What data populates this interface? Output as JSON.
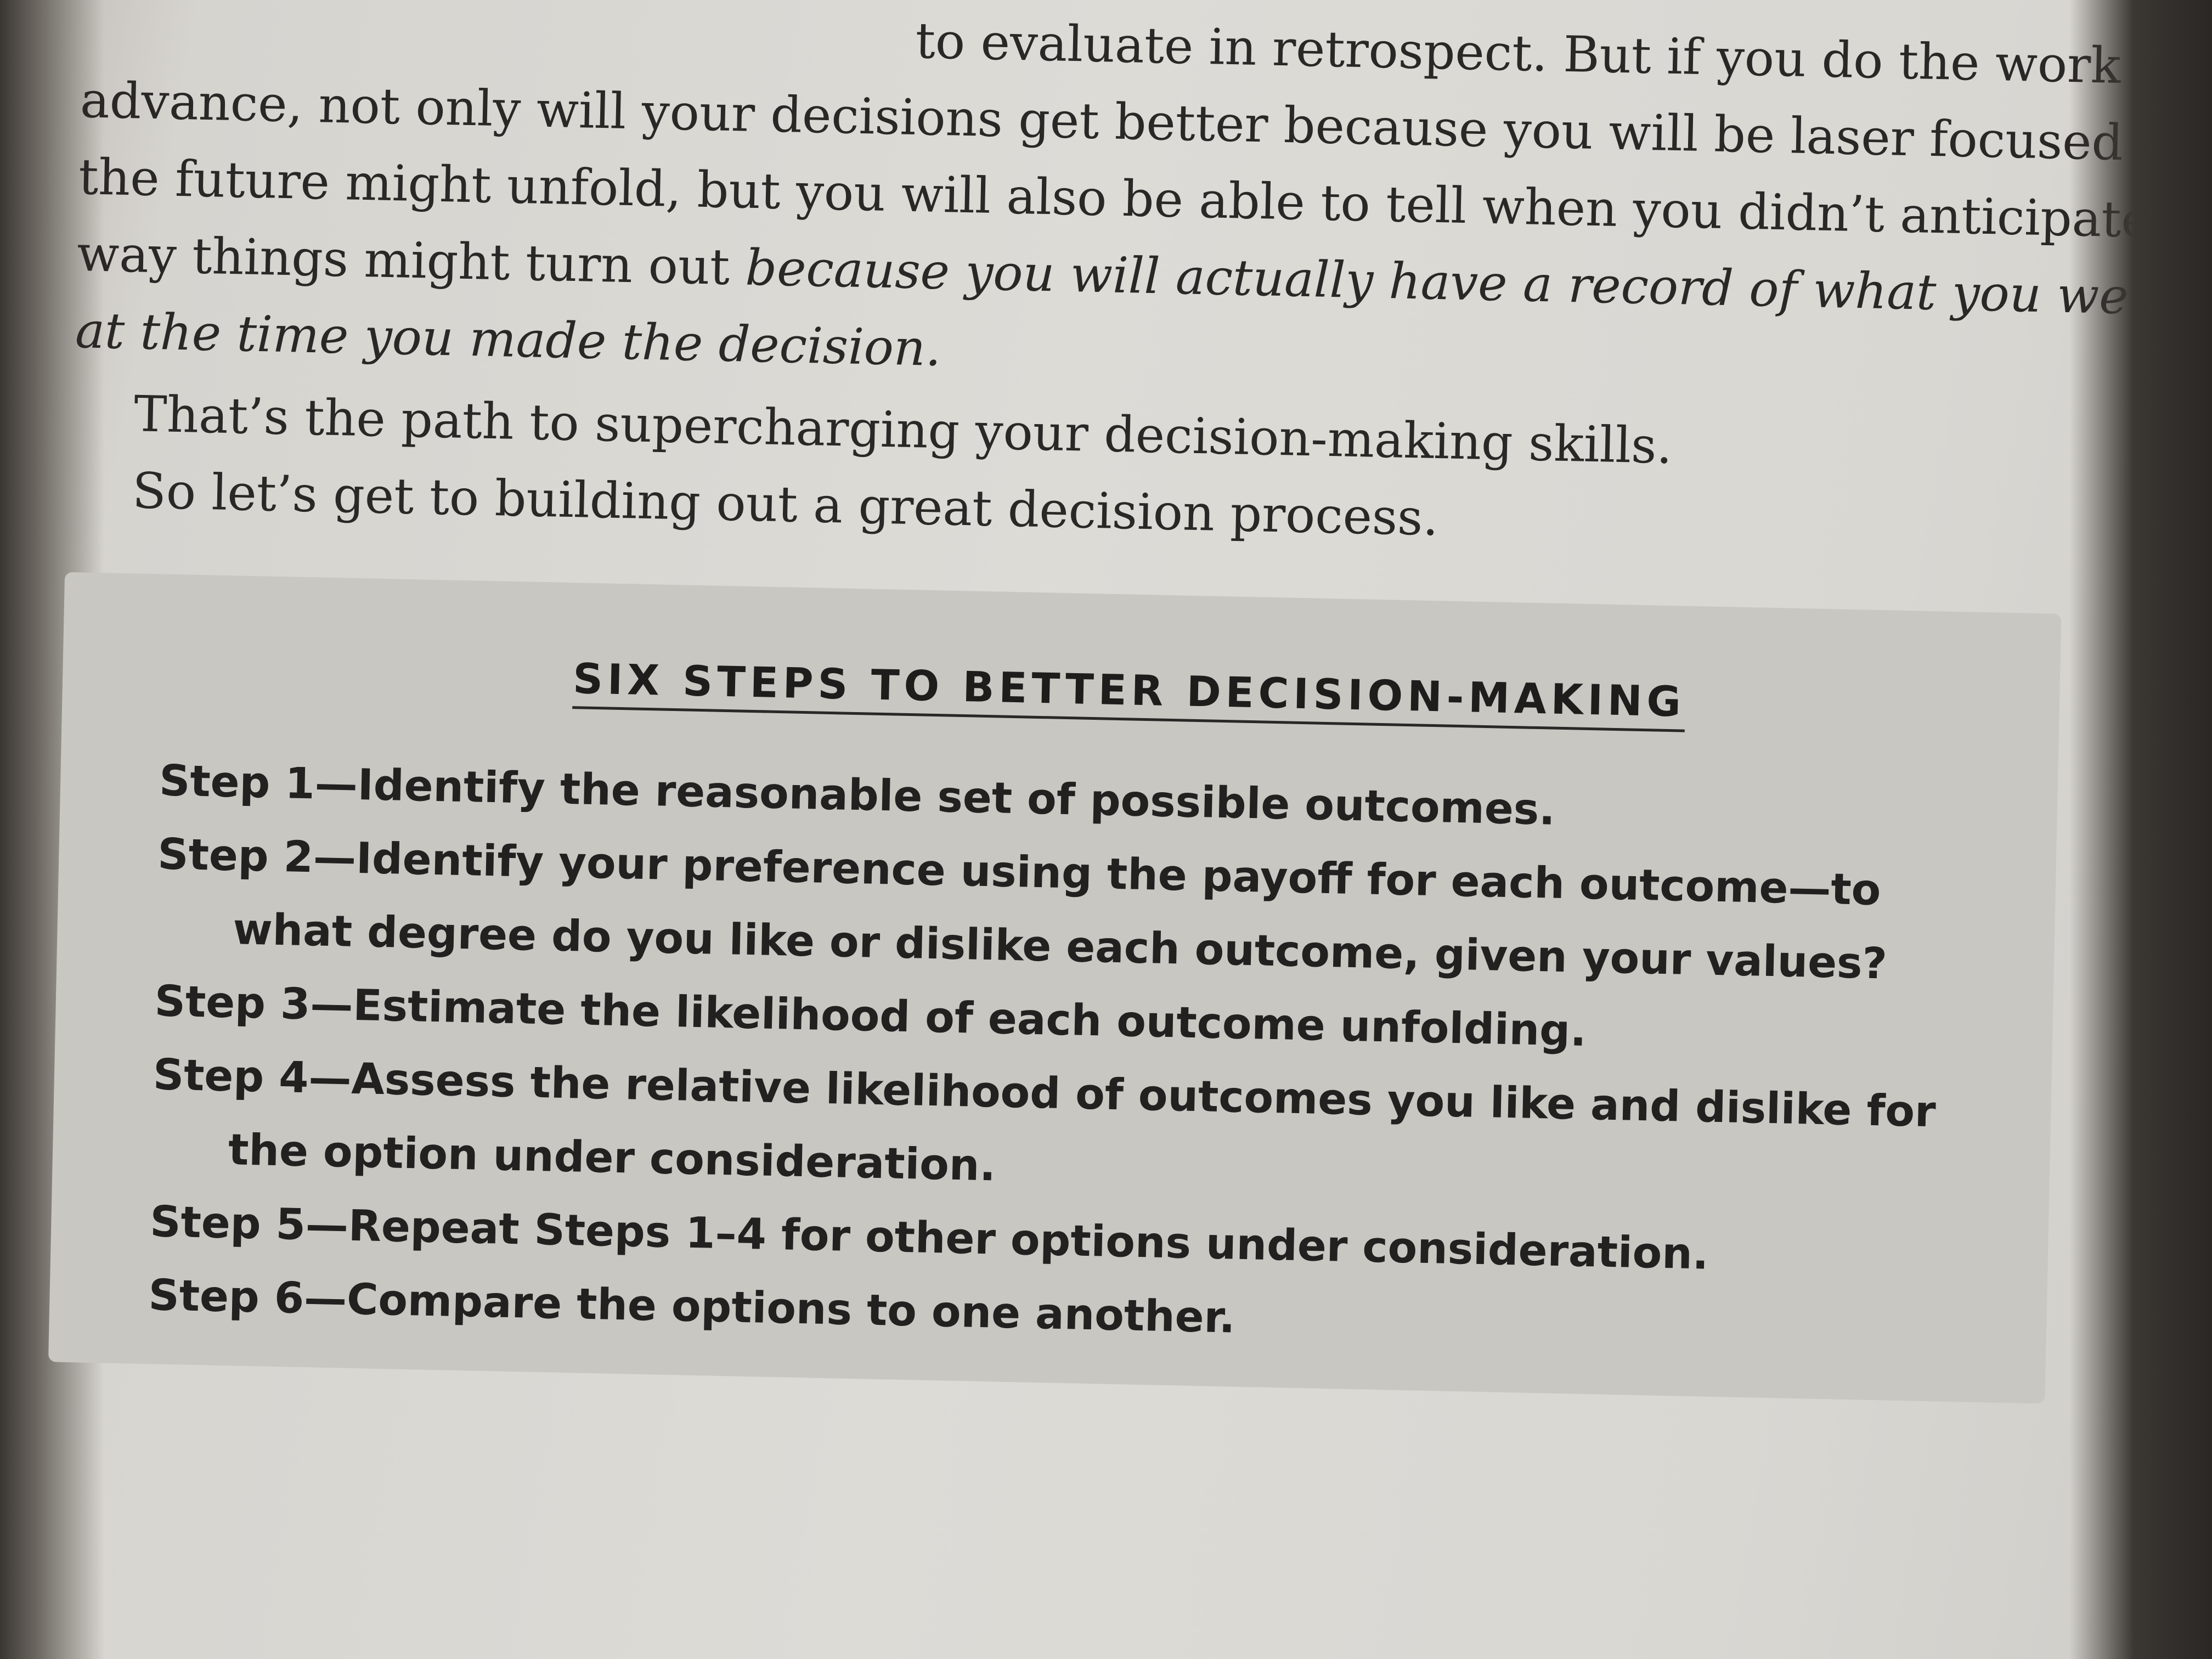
{
  "prose": {
    "line1": "to evaluate in retrospect. But if you do the work in",
    "line2": "advance, not only will your decisions get better because you will be laser focused on how",
    "line3": "the future might unfold, but you will also be able to tell when you didn’t anticipate the",
    "line4_plain": "way things might turn out ",
    "line4_italic": "because you will actually have a record of what you were thinking",
    "line5_italic": "at the time you made the decision.",
    "para2": "That’s the path to supercharging your decision-making skills.",
    "para3": "So let’s get to building out a great decision process."
  },
  "box": {
    "title": "SIX STEPS TO BETTER DECISION-MAKING",
    "steps": [
      {
        "first": "Step 1—Identify the reasonable set of possible outcomes.",
        "second": ""
      },
      {
        "first": "Step 2—Identify your preference using the payoff for each outcome—to",
        "second": "what degree do you like or dislike each outcome, given your values?"
      },
      {
        "first": "Step 3—Estimate the likelihood of each outcome unfolding.",
        "second": ""
      },
      {
        "first": "Step 4—Assess the relative likelihood of outcomes you like and dislike for",
        "second": "the option under consideration."
      },
      {
        "first": "Step 5—Repeat Steps 1–4 for other options under consideration.",
        "second": ""
      },
      {
        "first": "Step 6—Compare the options to one another.",
        "second": ""
      }
    ]
  }
}
